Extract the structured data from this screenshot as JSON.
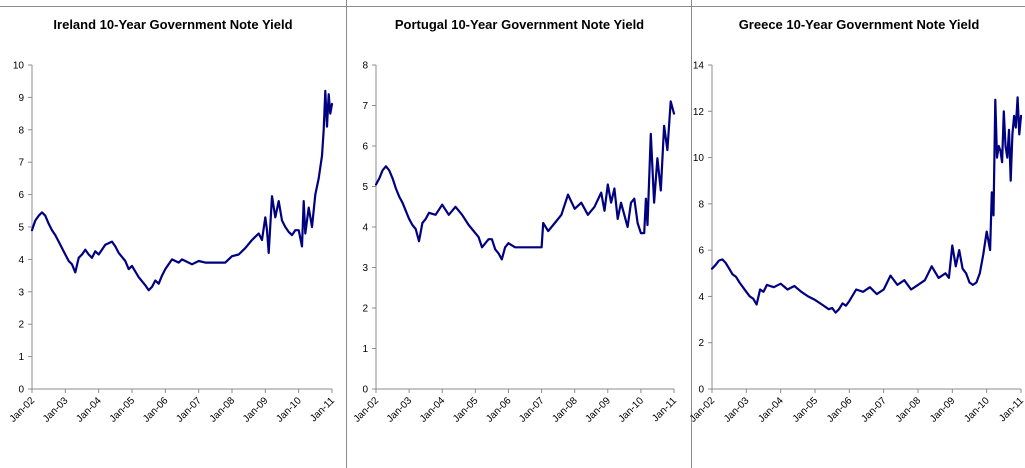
{
  "chart_data": [
    {
      "type": "line",
      "title": "Ireland 10-Year Government Note Yield",
      "xlabel": "",
      "ylabel": "",
      "ylim": [
        0,
        10
      ],
      "yticks": [
        0,
        1,
        2,
        3,
        4,
        5,
        6,
        7,
        8,
        9,
        10
      ],
      "xticks": [
        "Jan-02",
        "Jan-03",
        "Jan-04",
        "Jan-05",
        "Jan-06",
        "Jan-07",
        "Jan-08",
        "Jan-09",
        "Jan-10",
        "Jan-11"
      ],
      "grid": false,
      "color": "#000080",
      "series": [
        {
          "x": [
            2002.0,
            2002.1,
            2002.2,
            2002.3,
            2002.4,
            2002.5,
            2002.6,
            2002.7,
            2002.8,
            2002.9,
            2003.0,
            2003.1,
            2003.2,
            2003.3,
            2003.4,
            2003.5,
            2003.6,
            2003.7,
            2003.8,
            2003.9,
            2004.0,
            2004.2,
            2004.4,
            2004.5,
            2004.6,
            2004.8,
            2004.9,
            2005.0,
            2005.2,
            2005.4,
            2005.5,
            2005.6,
            2005.7,
            2005.8,
            2005.9,
            2006.0,
            2006.2,
            2006.4,
            2006.5,
            2006.6,
            2006.8,
            2007.0,
            2007.2,
            2007.5,
            2007.8,
            2008.0,
            2008.2,
            2008.4,
            2008.6,
            2008.8,
            2008.9,
            2009.0,
            2009.05,
            2009.1,
            2009.2,
            2009.3,
            2009.4,
            2009.5,
            2009.6,
            2009.7,
            2009.8,
            2009.9,
            2010.0,
            2010.1,
            2010.15,
            2010.2,
            2010.3,
            2010.4,
            2010.5,
            2010.6,
            2010.7,
            2010.75,
            2010.8,
            2010.85,
            2010.9,
            2010.95,
            2011.0
          ],
          "y": [
            4.9,
            5.2,
            5.35,
            5.45,
            5.35,
            5.1,
            4.9,
            4.75,
            4.55,
            4.35,
            4.15,
            3.95,
            3.85,
            3.6,
            4.05,
            4.15,
            4.3,
            4.15,
            4.05,
            4.25,
            4.15,
            4.45,
            4.55,
            4.4,
            4.2,
            3.95,
            3.7,
            3.8,
            3.45,
            3.2,
            3.05,
            3.15,
            3.35,
            3.25,
            3.5,
            3.7,
            4.0,
            3.9,
            4.0,
            3.95,
            3.85,
            3.95,
            3.9,
            3.9,
            3.9,
            4.1,
            4.15,
            4.35,
            4.6,
            4.8,
            4.6,
            5.3,
            4.9,
            4.2,
            5.95,
            5.3,
            5.8,
            5.2,
            5.0,
            4.85,
            4.75,
            4.9,
            4.9,
            4.4,
            5.8,
            4.8,
            5.6,
            5.0,
            6.0,
            6.5,
            7.2,
            8.0,
            9.2,
            8.1,
            9.1,
            8.5,
            8.8
          ]
        }
      ]
    },
    {
      "type": "line",
      "title": "Portugal 10-Year Government Note Yield",
      "xlabel": "",
      "ylabel": "",
      "ylim": [
        0,
        8
      ],
      "yticks": [
        0,
        1,
        2,
        3,
        4,
        5,
        6,
        7,
        8
      ],
      "xticks": [
        "Jan-02",
        "Jan-03",
        "Jan-04",
        "Jan-05",
        "Jan-06",
        "Jan-07",
        "Jan-08",
        "Jan-09",
        "Jan-10",
        "Jan-11"
      ],
      "grid": false,
      "color": "#000080",
      "series": [
        {
          "x": [
            2002.0,
            2002.1,
            2002.2,
            2002.3,
            2002.4,
            2002.5,
            2002.6,
            2002.7,
            2002.8,
            2002.9,
            2003.0,
            2003.1,
            2003.2,
            2003.3,
            2003.4,
            2003.5,
            2003.6,
            2003.8,
            2004.0,
            2004.2,
            2004.4,
            2004.5,
            2004.6,
            2004.8,
            2005.0,
            2005.1,
            2005.2,
            2005.4,
            2005.5,
            2005.6,
            2005.7,
            2005.8,
            2005.9,
            2006.0,
            2006.2,
            2006.4,
            2006.6,
            2006.8,
            2007.0,
            2007.05,
            2007.2,
            2007.4,
            2007.6,
            2007.8,
            2008.0,
            2008.2,
            2008.4,
            2008.6,
            2008.8,
            2008.9,
            2009.0,
            2009.1,
            2009.2,
            2009.3,
            2009.4,
            2009.5,
            2009.6,
            2009.7,
            2009.8,
            2009.9,
            2010.0,
            2010.1,
            2010.15,
            2010.2,
            2010.3,
            2010.4,
            2010.5,
            2010.6,
            2010.7,
            2010.8,
            2010.9,
            2011.0
          ],
          "y": [
            5.05,
            5.2,
            5.4,
            5.5,
            5.4,
            5.2,
            4.95,
            4.75,
            4.6,
            4.4,
            4.2,
            4.05,
            3.95,
            3.65,
            4.1,
            4.2,
            4.35,
            4.3,
            4.55,
            4.3,
            4.5,
            4.4,
            4.3,
            4.05,
            3.85,
            3.75,
            3.5,
            3.7,
            3.7,
            3.45,
            3.35,
            3.2,
            3.5,
            3.6,
            3.5,
            3.5,
            3.5,
            3.5,
            3.5,
            4.1,
            3.9,
            4.1,
            4.3,
            4.8,
            4.45,
            4.6,
            4.3,
            4.5,
            4.85,
            4.4,
            5.05,
            4.6,
            4.95,
            4.2,
            4.6,
            4.3,
            4.0,
            4.6,
            4.7,
            4.1,
            3.85,
            3.85,
            4.7,
            4.05,
            6.3,
            4.6,
            5.7,
            4.9,
            6.5,
            5.9,
            7.1,
            6.8
          ]
        }
      ]
    },
    {
      "type": "line",
      "title": "Greece 10-Year Government Note Yield",
      "xlabel": "",
      "ylabel": "",
      "ylim": [
        0,
        14
      ],
      "yticks": [
        0,
        2,
        4,
        6,
        8,
        10,
        12,
        14
      ],
      "xticks": [
        "Jan-02",
        "Jan-03",
        "Jan-04",
        "Jan-05",
        "Jan-06",
        "Jan-07",
        "Jan-08",
        "Jan-09",
        "Jan-10",
        "Jan-11"
      ],
      "grid": false,
      "color": "#000080",
      "series": [
        {
          "x": [
            2002.0,
            2002.1,
            2002.2,
            2002.3,
            2002.4,
            2002.5,
            2002.6,
            2002.7,
            2002.8,
            2002.9,
            2003.0,
            2003.1,
            2003.2,
            2003.3,
            2003.4,
            2003.5,
            2003.6,
            2003.8,
            2004.0,
            2004.2,
            2004.4,
            2004.6,
            2004.8,
            2005.0,
            2005.2,
            2005.4,
            2005.5,
            2005.6,
            2005.7,
            2005.8,
            2005.9,
            2006.0,
            2006.2,
            2006.4,
            2006.6,
            2006.8,
            2007.0,
            2007.2,
            2007.4,
            2007.6,
            2007.8,
            2008.0,
            2008.2,
            2008.4,
            2008.6,
            2008.8,
            2008.9,
            2009.0,
            2009.1,
            2009.2,
            2009.3,
            2009.4,
            2009.5,
            2009.6,
            2009.7,
            2009.8,
            2009.9,
            2010.0,
            2010.1,
            2010.15,
            2010.2,
            2010.25,
            2010.3,
            2010.35,
            2010.4,
            2010.45,
            2010.5,
            2010.55,
            2010.6,
            2010.65,
            2010.7,
            2010.75,
            2010.8,
            2010.85,
            2010.9,
            2010.95,
            2011.0
          ],
          "y": [
            5.2,
            5.35,
            5.55,
            5.6,
            5.45,
            5.2,
            4.95,
            4.85,
            4.6,
            4.4,
            4.2,
            4.0,
            3.9,
            3.65,
            4.3,
            4.2,
            4.5,
            4.4,
            4.55,
            4.3,
            4.45,
            4.2,
            4.0,
            3.85,
            3.65,
            3.45,
            3.5,
            3.3,
            3.45,
            3.7,
            3.6,
            3.8,
            4.3,
            4.2,
            4.4,
            4.1,
            4.3,
            4.9,
            4.5,
            4.7,
            4.3,
            4.5,
            4.7,
            5.3,
            4.8,
            5.0,
            4.8,
            6.2,
            5.3,
            6.0,
            5.2,
            5.0,
            4.6,
            4.5,
            4.6,
            5.0,
            5.8,
            6.8,
            6.0,
            8.5,
            7.5,
            12.5,
            10.0,
            10.5,
            10.3,
            9.8,
            12.0,
            10.5,
            10.0,
            11.2,
            9.0,
            11.0,
            11.8,
            11.3,
            12.6,
            11.0,
            11.8
          ]
        }
      ]
    }
  ]
}
